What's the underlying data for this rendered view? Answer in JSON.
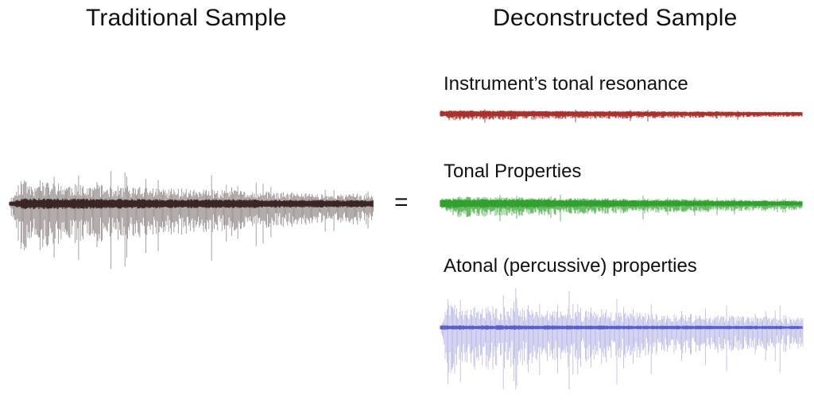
{
  "headings": {
    "left": "Traditional Sample",
    "right": "Deconstructed Sample"
  },
  "equals_sign": "=",
  "traditional": {
    "color": "#3a2627",
    "shape": "dense-decaying-waveform"
  },
  "components": [
    {
      "label": "Instrument’s tonal resonance",
      "color": "#a8302d",
      "shape": "thin-steady-waveform"
    },
    {
      "label": "Tonal Properties",
      "color": "#32a02f",
      "shape": "moderate-decaying-waveform"
    },
    {
      "label": "Atonal (percussive) properties",
      "color": "#5a60c8",
      "shape": "tall-spiky-waveform"
    }
  ]
}
